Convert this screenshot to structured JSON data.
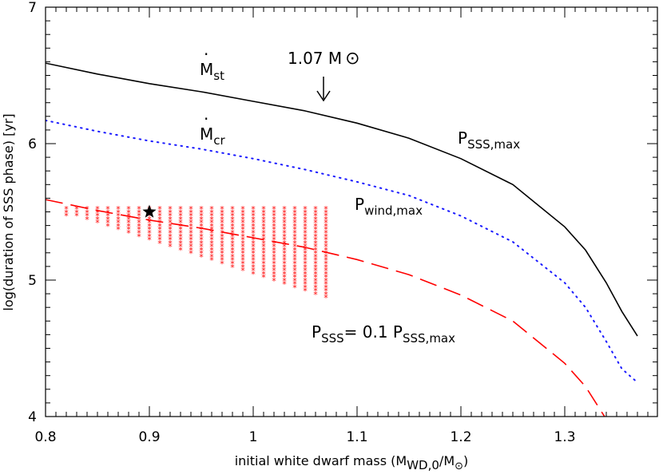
{
  "chart_data": {
    "type": "line",
    "xlabel": "initial white dwarf mass (M_WD,0/M_⊙)",
    "ylabel": "log(duration of SSS phase) [yr]",
    "xlim": [
      0.8,
      1.4
    ],
    "ylim": [
      4,
      7
    ],
    "xticks": [
      0.8,
      0.9,
      1.0,
      1.1,
      1.2,
      1.3
    ],
    "xtick_labels": [
      "0.8",
      "0.9",
      "1",
      "1.1",
      "1.2",
      "1.3"
    ],
    "yticks": [
      4,
      5,
      6,
      7
    ],
    "ytick_labels": [
      "4",
      "5",
      "6",
      "7"
    ],
    "grid": false,
    "series": [
      {
        "name": "P_SSS,max",
        "style": "solid",
        "color": "#000000",
        "x": [
          0.8,
          0.85,
          0.9,
          0.95,
          1.0,
          1.05,
          1.1,
          1.15,
          1.2,
          1.25,
          1.3,
          1.32,
          1.34,
          1.355,
          1.37
        ],
        "y": [
          6.59,
          6.51,
          6.44,
          6.38,
          6.31,
          6.24,
          6.15,
          6.04,
          5.89,
          5.7,
          5.39,
          5.22,
          4.98,
          4.77,
          4.59
        ]
      },
      {
        "name": "P_wind,max",
        "style": "dotted",
        "color": "#1a1aff",
        "x": [
          0.8,
          0.85,
          0.9,
          0.95,
          1.0,
          1.05,
          1.1,
          1.15,
          1.2,
          1.25,
          1.3,
          1.32,
          1.34,
          1.355,
          1.37
        ],
        "y": [
          6.17,
          6.09,
          6.02,
          5.96,
          5.89,
          5.81,
          5.72,
          5.62,
          5.47,
          5.28,
          4.98,
          4.8,
          4.55,
          4.35,
          4.25
        ]
      },
      {
        "name": "P_SSS= 0.1 P_SSS,max",
        "style": "dashed",
        "color": "#ff0000",
        "x": [
          0.8,
          0.85,
          0.9,
          0.95,
          1.0,
          1.05,
          1.1,
          1.15,
          1.2,
          1.25,
          1.3,
          1.32,
          1.34,
          1.35,
          1.36
        ],
        "y": [
          5.59,
          5.51,
          5.44,
          5.38,
          5.31,
          5.24,
          5.15,
          5.04,
          4.89,
          4.7,
          4.39,
          4.22,
          3.98,
          3.85,
          3.98
        ]
      }
    ],
    "scatter": {
      "marker": "asterisk",
      "color": "#ff0000",
      "x_start": 0.82,
      "x_end": 1.07,
      "x_step": 0.01,
      "y_top": 5.52,
      "y_bottom_first": 5.47,
      "y_bottom_last": 4.87,
      "y_step": 0.025
    },
    "special_point": {
      "x": 0.9,
      "y": 5.5,
      "marker": "star",
      "color": "#000000"
    },
    "annotations": {
      "mst": {
        "dot": "·",
        "main": "M",
        "sub": "st"
      },
      "mcr": {
        "dot": "·",
        "main": "M",
        "sub": "cr"
      },
      "mass_label": "1.07 M",
      "mass_sun": "⊙",
      "psss_max": {
        "main": "P",
        "sub": "SSS,max"
      },
      "pwind_max": {
        "main": "P",
        "sub": "wind,max"
      },
      "psss_rel": {
        "main": "P",
        "sub": "SSS",
        "mid": "= 0.1 P",
        "sub2": "SSS,max"
      }
    },
    "xlabel_parts": {
      "pre": "initial white dwarf mass (M",
      "sub1": "WD,0",
      "mid": "/M",
      "sub2": "⊙",
      "post": ")"
    }
  }
}
